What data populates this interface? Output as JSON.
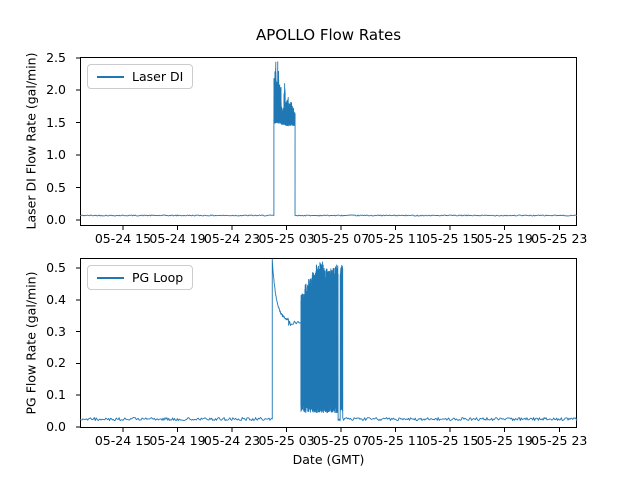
{
  "figure_title": "APOLLO Flow Rates",
  "accent_color": "#1f77b4",
  "chart_data": [
    {
      "type": "line",
      "title": "APOLLO Flow Rates",
      "ylabel": "Laser DI Flow Rate (gal/min)",
      "legend_position": "upper left",
      "grid": false,
      "color": "#1f77b4",
      "x_unit": "hours since 05-24 00:00 GMT",
      "xlim": [
        11.85,
        48.3
      ],
      "ylim": [
        -0.092,
        2.512
      ],
      "xticks": [
        {
          "hour": 15,
          "label": "05-24 15"
        },
        {
          "hour": 19,
          "label": "05-24 19"
        },
        {
          "hour": 23,
          "label": "05-24 23"
        },
        {
          "hour": 27,
          "label": "05-25 03"
        },
        {
          "hour": 31,
          "label": "05-25 07"
        },
        {
          "hour": 35,
          "label": "05-25 11"
        },
        {
          "hour": 39,
          "label": "05-25 15"
        },
        {
          "hour": 43,
          "label": "05-25 19"
        },
        {
          "hour": 47,
          "label": "05-25 23"
        }
      ],
      "yticks": [
        {
          "value": 0.0,
          "label": "0.0"
        },
        {
          "value": 0.5,
          "label": "0.5"
        },
        {
          "value": 1.0,
          "label": "1.0"
        },
        {
          "value": 1.5,
          "label": "1.5"
        },
        {
          "value": 2.0,
          "label": "2.0"
        },
        {
          "value": 2.5,
          "label": "2.5"
        }
      ],
      "series": [
        {
          "name": "Laser DI",
          "description": "Baseline ~0.07 gal/min all day; burst of oscillation 1.45-2.45 gal/min between ~05-25 02:00 and ~05-25 03:40 GMT, peaks 2.45.",
          "segments": [
            {
              "kind": "flat",
              "t0": 11.85,
              "t1": 26.07,
              "value": 0.07,
              "noise": 0.008
            },
            {
              "kind": "burst",
              "t0": 26.07,
              "t1": 26.6,
              "low": 1.49,
              "low_jitter": 0.06,
              "envelope": [
                2.32,
                2.45,
                2.18,
                2.44,
                2.12,
                2.15
              ],
              "jitter": 0.4,
              "step": 0.012
            },
            {
              "kind": "burst",
              "t0": 26.6,
              "t1": 27.0,
              "low": 1.46,
              "low_jitter": 0.05,
              "envelope": [
                1.86,
                1.76,
                2.12,
                1.82
              ],
              "jitter": 0.24,
              "step": 0.012
            },
            {
              "kind": "burst",
              "t0": 27.0,
              "t1": 27.62,
              "low": 1.45,
              "low_jitter": 0.05,
              "envelope": [
                1.9,
                1.8,
                1.84,
                1.76,
                1.73
              ],
              "jitter": 0.2,
              "step": 0.014
            },
            {
              "kind": "flat",
              "t0": 27.62,
              "t1": 48.3,
              "value": 0.07,
              "noise": 0.008
            }
          ]
        }
      ]
    },
    {
      "type": "line",
      "xlabel": "Date (GMT)",
      "ylabel": "PG Flow Rate (gal/min)",
      "legend_position": "upper left",
      "grid": false,
      "color": "#1f77b4",
      "x_unit": "hours since 05-24 00:00 GMT",
      "xlim": [
        11.85,
        48.3
      ],
      "ylim": [
        -0.0032,
        0.5315
      ],
      "xticks": [
        {
          "hour": 15,
          "label": "05-24 15"
        },
        {
          "hour": 19,
          "label": "05-24 19"
        },
        {
          "hour": 23,
          "label": "05-24 23"
        },
        {
          "hour": 27,
          "label": "05-25 03"
        },
        {
          "hour": 31,
          "label": "05-25 07"
        },
        {
          "hour": 35,
          "label": "05-25 11"
        },
        {
          "hour": 39,
          "label": "05-25 15"
        },
        {
          "hour": 43,
          "label": "05-25 19"
        },
        {
          "hour": 47,
          "label": "05-25 23"
        }
      ],
      "yticks": [
        {
          "value": 0.0,
          "label": "0.0"
        },
        {
          "value": 0.1,
          "label": "0.1"
        },
        {
          "value": 0.2,
          "label": "0.2"
        },
        {
          "value": 0.3,
          "label": "0.3"
        },
        {
          "value": 0.4,
          "label": "0.4"
        },
        {
          "value": 0.5,
          "label": "0.5"
        }
      ],
      "series": [
        {
          "name": "PG Loop",
          "description": "Baseline ~0.025 gal/min; step to 0.52 at ~05-25 02:00 decaying to ~0.33 by 03:10; dense oscillation 0.04-0.52 from ~04:00 to ~07:00, brief dropout then final burst to 0.51; back to baseline after 07:10.",
          "segments": [
            {
              "kind": "flat",
              "t0": 11.85,
              "t1": 25.95,
              "value": 0.025,
              "noise": 0.005
            },
            {
              "kind": "decay",
              "t0": 25.95,
              "t1": 27.15,
              "from": 0.525,
              "to": 0.335,
              "tau": 0.3,
              "noise": 0.004
            },
            {
              "kind": "flat",
              "t0": 27.15,
              "t1": 28.05,
              "value": 0.326,
              "noise": 0.007
            },
            {
              "kind": "burst",
              "t0": 28.05,
              "t1": 30.78,
              "low": 0.045,
              "low_jitter": 0.03,
              "envelope": [
                0.42,
                0.45,
                0.47,
                0.49,
                0.51,
                0.52,
                0.5,
                0.49,
                0.5,
                0.51
              ],
              "jitter": 0.05,
              "step": 0.01
            },
            {
              "kind": "flat",
              "t0": 30.78,
              "t1": 30.93,
              "value": 0.022,
              "noise": 0.003
            },
            {
              "kind": "burst",
              "t0": 30.93,
              "t1": 31.12,
              "low": 0.05,
              "low_jitter": 0.02,
              "envelope": [
                0.51
              ],
              "jitter": 0.04,
              "step": 0.01
            },
            {
              "kind": "flat",
              "t0": 31.12,
              "t1": 48.3,
              "value": 0.025,
              "noise": 0.005
            }
          ]
        }
      ]
    }
  ]
}
